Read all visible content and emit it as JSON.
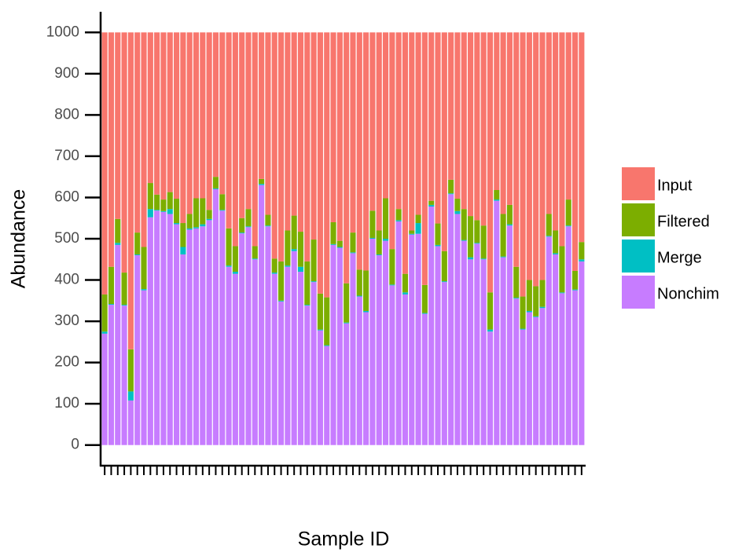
{
  "chart_data": {
    "type": "stacked_bar",
    "x_label": "Sample ID",
    "y_label": "Abundance",
    "categories": [
      null,
      null,
      null,
      null,
      null,
      null,
      null,
      null,
      null,
      null,
      null,
      null,
      null,
      null,
      null,
      null,
      null,
      null,
      null,
      null,
      null,
      null,
      null,
      null,
      null,
      null,
      null,
      null,
      null,
      null,
      null,
      null,
      null,
      null,
      null,
      null,
      null,
      null,
      null,
      null,
      null,
      null,
      null,
      null,
      null,
      null,
      null,
      null,
      null,
      null,
      null,
      null,
      null,
      null,
      null,
      null,
      null,
      null,
      null,
      null,
      null,
      null,
      null,
      null,
      null,
      null,
      null,
      null,
      null,
      null,
      null,
      null,
      null,
      null
    ],
    "series": [
      {
        "name": "Input",
        "color": "#F8766D",
        "values": [
          635,
          568,
          452,
          582,
          768,
          485,
          520,
          365,
          393,
          405,
          387,
          403,
          462,
          440,
          402,
          402,
          430,
          350,
          392,
          475,
          518,
          450,
          428,
          518,
          355,
          442,
          548,
          555,
          480,
          444,
          483,
          555,
          502,
          633,
          642,
          460,
          505,
          608,
          485,
          575,
          577,
          432,
          480,
          402,
          525,
          428,
          585,
          480,
          442,
          612,
          408,
          463,
          530,
          357,
          403,
          428,
          445,
          455,
          468,
          630,
          382,
          440,
          418,
          568,
          640,
          600,
          615,
          600,
          440,
          480,
          518,
          405,
          578,
          508
        ]
      },
      {
        "name": "Filtered",
        "color": "#7CAE00",
        "values": [
          90,
          90,
          58,
          78,
          102,
          53,
          102,
          63,
          37,
          28,
          41,
          59,
          58,
          35,
          70,
          63,
          22,
          28,
          38,
          90,
          62,
          35,
          42,
          30,
          12,
          26,
          34,
          95,
          85,
          81,
          85,
          105,
          101,
          87,
          116,
          53,
          15,
          95,
          48,
          63,
          98,
          66,
          58,
          98,
          86,
          27,
          45,
          8,
          20,
          68,
          10,
          52,
          73,
          33,
          30,
          75,
          100,
          55,
          80,
          90,
          23,
          103,
          47,
          75,
          78,
          75,
          73,
          65,
          53,
          55,
          112,
          63,
          45,
          42
        ]
      },
      {
        "name": "Merge",
        "color": "#00BFC4",
        "values": [
          5,
          2,
          5,
          2,
          22,
          2,
          3,
          20,
          2,
          2,
          12,
          3,
          18,
          3,
          3,
          5,
          3,
          2,
          2,
          3,
          5,
          2,
          2,
          2,
          3,
          2,
          3,
          2,
          3,
          5,
          12,
          2,
          2,
          2,
          2,
          2,
          2,
          2,
          2,
          2,
          3,
          2,
          2,
          5,
          2,
          3,
          5,
          2,
          26,
          2,
          4,
          3,
          2,
          2,
          7,
          2,
          5,
          2,
          2,
          5,
          3,
          2,
          3,
          2,
          2,
          3,
          2,
          3,
          2,
          3,
          2,
          2,
          2,
          5
        ]
      },
      {
        "name": "Nonchim",
        "color": "#C77CFF",
        "values": [
          270,
          340,
          485,
          338,
          108,
          460,
          375,
          552,
          568,
          565,
          560,
          535,
          462,
          522,
          525,
          530,
          545,
          620,
          568,
          432,
          415,
          513,
          528,
          450,
          630,
          530,
          415,
          348,
          432,
          470,
          420,
          338,
          395,
          278,
          240,
          485,
          478,
          295,
          465,
          360,
          322,
          500,
          460,
          495,
          387,
          542,
          365,
          510,
          512,
          318,
          578,
          482,
          395,
          608,
          560,
          495,
          450,
          488,
          450,
          275,
          592,
          455,
          532,
          355,
          280,
          322,
          310,
          332,
          505,
          462,
          368,
          530,
          375,
          445
        ]
      }
    ],
    "ylim": [
      -50,
      1050
    ],
    "yticks": [
      0,
      100,
      200,
      300,
      400,
      500,
      600,
      700,
      800,
      900,
      1000
    ],
    "grid": false,
    "legend": "right"
  }
}
